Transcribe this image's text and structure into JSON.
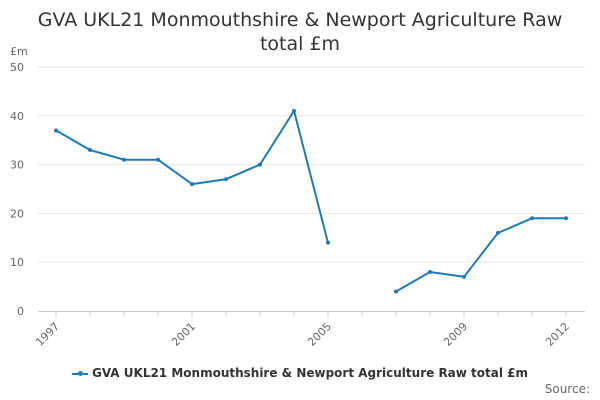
{
  "title_line1": "GVA UKL21 Monmouthshire & Newport Agriculture Raw",
  "title_line2": "total £m",
  "y_unit": "£m",
  "source_label": "Source:",
  "series_color": "#1f7bb6",
  "chart_data": {
    "type": "line",
    "title": "GVA UKL21 Monmouthshire & Newport Agriculture Raw total £m",
    "ylabel": "£m",
    "x": [
      1997,
      1998,
      1999,
      2000,
      2001,
      2002,
      2003,
      2004,
      2005,
      2006,
      2007,
      2008,
      2009,
      2010,
      2011,
      2012
    ],
    "x_tick_labels": [
      "1997",
      "2001",
      "2005",
      "2009",
      "2012"
    ],
    "y_ticks": [
      0,
      10,
      20,
      30,
      40,
      50
    ],
    "ylim": [
      0,
      50
    ],
    "grid": true,
    "legend_position": "bottom",
    "series": [
      {
        "name": "GVA UKL21 Monmouthshire & Newport Agriculture Raw total £m",
        "values": [
          37,
          33,
          31,
          31,
          26,
          27,
          30,
          41,
          14,
          null,
          4,
          8,
          7,
          16,
          19,
          19
        ]
      }
    ]
  }
}
